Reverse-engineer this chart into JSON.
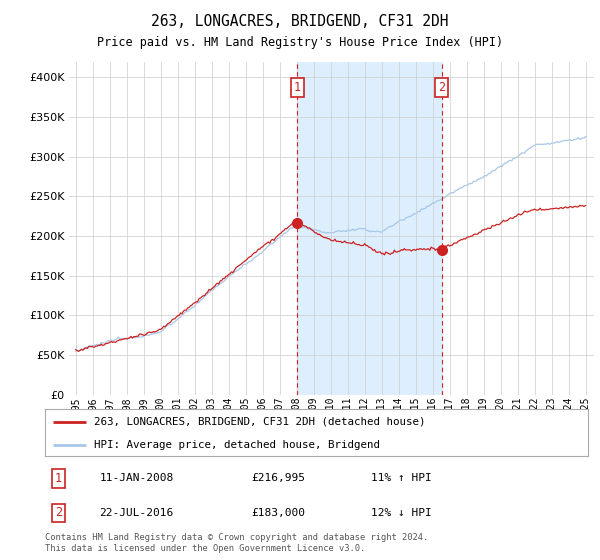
{
  "title": "263, LONGACRES, BRIDGEND, CF31 2DH",
  "subtitle": "Price paid vs. HM Land Registry's House Price Index (HPI)",
  "ylim": [
    0,
    420000
  ],
  "yticks": [
    0,
    50000,
    100000,
    150000,
    200000,
    250000,
    300000,
    350000,
    400000
  ],
  "hpi_color": "#a8c8e8",
  "price_color": "#cc2222",
  "vline_color": "#cc2222",
  "shade_color": "#ddeeff",
  "sale1_year": 2008.04,
  "sale2_year": 2016.55,
  "sale1_price": 216995,
  "sale2_price": 183000,
  "sale1": {
    "date": "11-JAN-2008",
    "price": 216995,
    "pct": "11%",
    "dir": "↑",
    "label": "1"
  },
  "sale2": {
    "date": "22-JUL-2016",
    "price": 183000,
    "pct": "12%",
    "dir": "↓",
    "label": "2"
  },
  "legend_line1": "263, LONGACRES, BRIDGEND, CF31 2DH (detached house)",
  "legend_line2": "HPI: Average price, detached house, Bridgend",
  "footnote": "Contains HM Land Registry data © Crown copyright and database right 2024.\nThis data is licensed under the Open Government Licence v3.0.",
  "background_color": "#ffffff",
  "grid_color": "#cccccc",
  "xstart": 1995,
  "xend": 2025
}
